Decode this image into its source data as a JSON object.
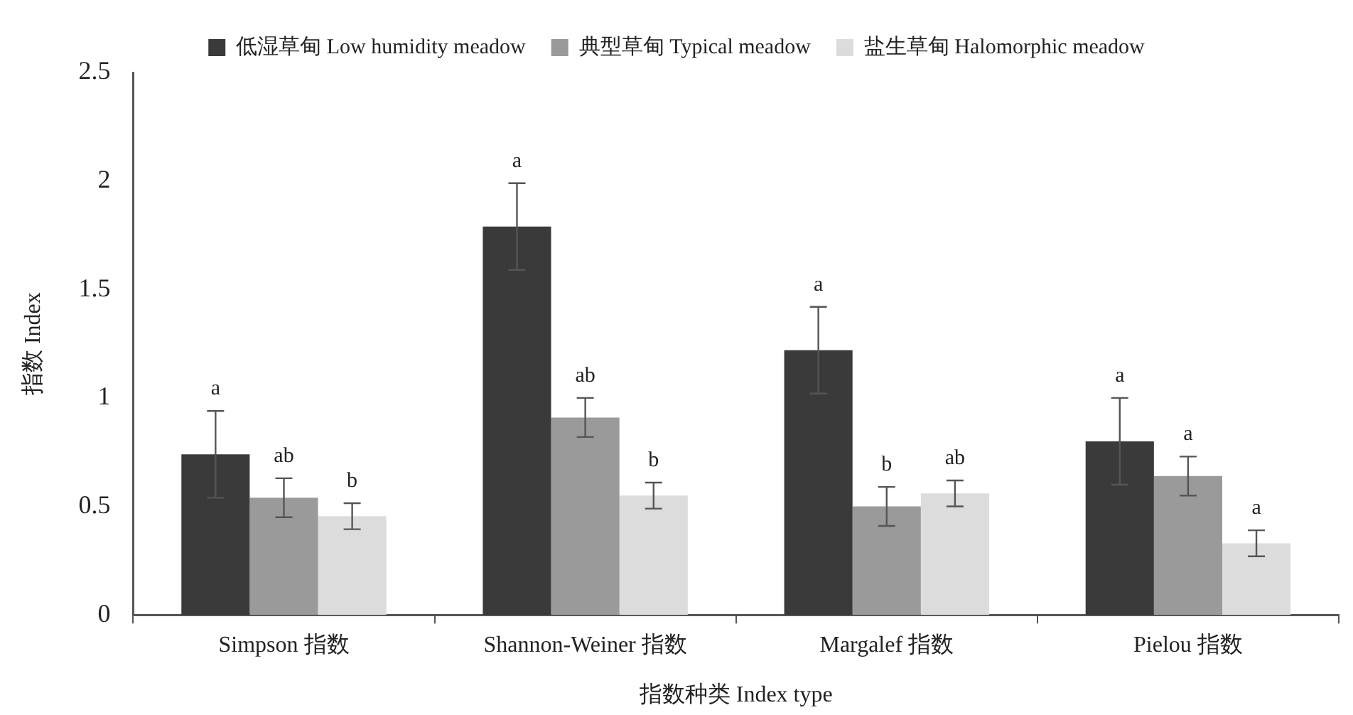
{
  "chart_data": {
    "type": "bar",
    "xlabel": "指数种类 Index type",
    "ylabel": "指数 Index",
    "categories": [
      "Simpson 指数",
      "Shannon-Weiner 指数",
      "Margalef 指数",
      "Pielou 指数"
    ],
    "series": [
      {
        "name": "低湿草甸 Low humidity meadow",
        "color": "#3a3a3a",
        "values": [
          0.74,
          1.79,
          1.22,
          0.8
        ],
        "errors": [
          0.2,
          0.2,
          0.2,
          0.2
        ],
        "value_labels": [
          "a",
          "a",
          "a",
          "a"
        ]
      },
      {
        "name": "典型草甸 Typical meadow",
        "color": "#9a9a9a",
        "values": [
          0.54,
          0.91,
          0.5,
          0.64
        ],
        "errors": [
          0.09,
          0.09,
          0.09,
          0.09
        ],
        "value_labels": [
          "ab",
          "ab",
          "b",
          "a"
        ]
      },
      {
        "name": "盐生草甸 Halomorphic meadow",
        "color": "#dcdcdc",
        "values": [
          0.455,
          0.55,
          0.56,
          0.33
        ],
        "errors": [
          0.06,
          0.06,
          0.06,
          0.06
        ],
        "value_labels": [
          "b",
          "b",
          "ab",
          "a"
        ]
      }
    ],
    "ylim": [
      0,
      2.5
    ],
    "yticks": [
      0,
      0.5,
      1,
      1.5,
      2,
      2.5
    ],
    "grid": false,
    "legend": "top"
  }
}
